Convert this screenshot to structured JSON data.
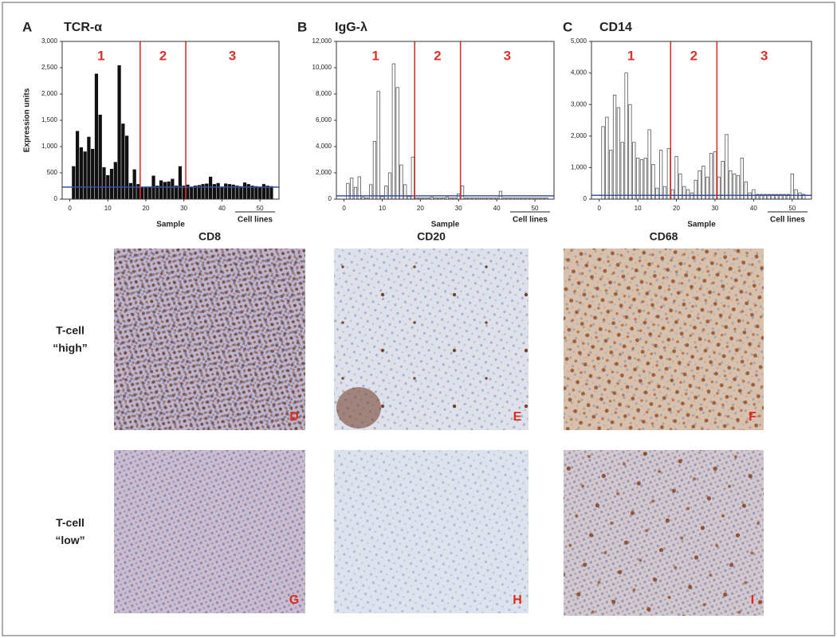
{
  "chart_data": [
    {
      "type": "bar",
      "panel": "A",
      "title": "TCR-α",
      "ylabel": "Expression units",
      "xlabel": "Sample",
      "annotation": "Cell lines",
      "region_labels": [
        "1",
        "2",
        "3"
      ],
      "dividers": [
        18.5,
        30.5
      ],
      "divider_color": "#d9342b",
      "reference_line": 230,
      "reference_color": "#3a4fa8",
      "color": "#111111",
      "edgecolor": "#111111",
      "x": [
        1,
        2,
        3,
        4,
        5,
        6,
        7,
        8,
        9,
        10,
        11,
        12,
        13,
        14,
        15,
        16,
        17,
        18,
        19,
        20,
        21,
        22,
        23,
        24,
        25,
        26,
        27,
        28,
        29,
        30,
        31,
        32,
        33,
        34,
        35,
        36,
        37,
        38,
        39,
        40,
        41,
        42,
        43,
        44,
        45,
        46,
        47,
        48,
        49,
        50,
        51,
        52,
        53
      ],
      "values": [
        620,
        1290,
        980,
        900,
        1180,
        950,
        2380,
        1600,
        600,
        450,
        570,
        700,
        2540,
        1430,
        1200,
        300,
        560,
        280,
        220,
        220,
        220,
        440,
        250,
        350,
        320,
        330,
        380,
        250,
        620,
        250,
        270,
        230,
        250,
        260,
        280,
        290,
        420,
        280,
        300,
        230,
        290,
        280,
        270,
        250,
        240,
        310,
        280,
        250,
        240,
        230,
        280,
        250,
        240
      ],
      "xlim": [
        -2,
        55
      ],
      "xticks": [
        0,
        10,
        20,
        30,
        40,
        50
      ],
      "ylim": [
        0,
        3000
      ],
      "yticks": [
        0,
        500,
        {
          "value": 1000,
          "label": "1,000"
        },
        {
          "value": 1500,
          "label": "1,500"
        },
        {
          "value": 2000,
          "label": "2,000"
        },
        {
          "value": 2500,
          "label": "2,500"
        },
        {
          "value": 3000,
          "label": "3,000"
        }
      ]
    },
    {
      "type": "bar",
      "panel": "B",
      "title": "IgG-λ",
      "xlabel": "Sample",
      "annotation": "Cell lines",
      "region_labels": [
        "1",
        "2",
        "3"
      ],
      "dividers": [
        18.5,
        30.5
      ],
      "divider_color": "#d9342b",
      "reference_line": 250,
      "reference_color": "#3a4fa8",
      "color": "#ffffff",
      "edgecolor": "#555555",
      "x": [
        1,
        2,
        3,
        4,
        5,
        6,
        7,
        8,
        9,
        10,
        11,
        12,
        13,
        14,
        15,
        16,
        17,
        18,
        19,
        20,
        21,
        22,
        23,
        24,
        25,
        26,
        27,
        28,
        29,
        30,
        31,
        32,
        33,
        34,
        35,
        36,
        37,
        38,
        39,
        40,
        41,
        42,
        43,
        44,
        45,
        46,
        47,
        48,
        49,
        50,
        51,
        52,
        53
      ],
      "values": [
        1200,
        1600,
        900,
        1700,
        150,
        100,
        1100,
        4400,
        8200,
        200,
        1000,
        2000,
        10300,
        8500,
        2600,
        1100,
        200,
        3200,
        100,
        100,
        100,
        100,
        150,
        100,
        100,
        100,
        150,
        100,
        100,
        400,
        1000,
        100,
        100,
        100,
        100,
        100,
        100,
        100,
        100,
        100,
        600,
        100,
        100,
        100,
        100,
        100,
        100,
        100,
        100,
        100,
        100,
        100,
        100
      ],
      "xlim": [
        -2,
        55
      ],
      "xticks": [
        0,
        10,
        20,
        30,
        40,
        50
      ],
      "ylim": [
        0,
        12000
      ],
      "yticks": [
        0,
        {
          "value": 2000,
          "label": "2,000"
        },
        {
          "value": 4000,
          "label": "4,000"
        },
        {
          "value": 6000,
          "label": "6,000"
        },
        {
          "value": 8000,
          "label": "8,000"
        },
        {
          "value": 10000,
          "label": "10,000"
        },
        {
          "value": 12000,
          "label": "12,000"
        }
      ]
    },
    {
      "type": "bar",
      "panel": "C",
      "title": "CD14",
      "xlabel": "Sample",
      "annotation": "Cell lines",
      "region_labels": [
        "1",
        "2",
        "3"
      ],
      "dividers": [
        18.5,
        30.5
      ],
      "divider_color": "#d9342b",
      "reference_line": 120,
      "reference_color": "#3a4fa8",
      "color": "#ffffff",
      "edgecolor": "#555555",
      "x": [
        1,
        2,
        3,
        4,
        5,
        6,
        7,
        8,
        9,
        10,
        11,
        12,
        13,
        14,
        15,
        16,
        17,
        18,
        19,
        20,
        21,
        22,
        23,
        24,
        25,
        26,
        27,
        28,
        29,
        30,
        31,
        32,
        33,
        34,
        35,
        36,
        37,
        38,
        39,
        40,
        41,
        42,
        43,
        44,
        45,
        46,
        47,
        48,
        49,
        50,
        51,
        52,
        53
      ],
      "values": [
        2300,
        2600,
        1550,
        3300,
        2900,
        1800,
        4000,
        3000,
        1800,
        1300,
        1250,
        1300,
        2200,
        1100,
        350,
        1550,
        400,
        1600,
        300,
        1350,
        800,
        400,
        300,
        200,
        600,
        900,
        1050,
        700,
        1450,
        1500,
        700,
        1200,
        2050,
        900,
        800,
        750,
        1300,
        550,
        200,
        300,
        150,
        150,
        150,
        150,
        150,
        150,
        150,
        150,
        150,
        800,
        300,
        200,
        150
      ],
      "xlim": [
        -2,
        55
      ],
      "xticks": [
        0,
        10,
        20,
        30,
        40,
        50
      ],
      "ylim": [
        0,
        5000
      ],
      "yticks": [
        0,
        {
          "value": 1000,
          "label": "1,000"
        },
        {
          "value": 2000,
          "label": "2,000"
        },
        {
          "value": 3000,
          "label": "3,000"
        },
        {
          "value": 4000,
          "label": "4,000"
        },
        {
          "value": 5000,
          "label": "5,000"
        }
      ]
    }
  ],
  "micrographs": {
    "columns": [
      "CD8",
      "CD20",
      "CD68"
    ],
    "rows": [
      [
        "T-cell",
        "“high”"
      ],
      [
        "T-cell",
        "“low”"
      ]
    ],
    "letters": [
      [
        "D",
        "E",
        "F"
      ],
      [
        "G",
        "H",
        "I"
      ]
    ]
  }
}
